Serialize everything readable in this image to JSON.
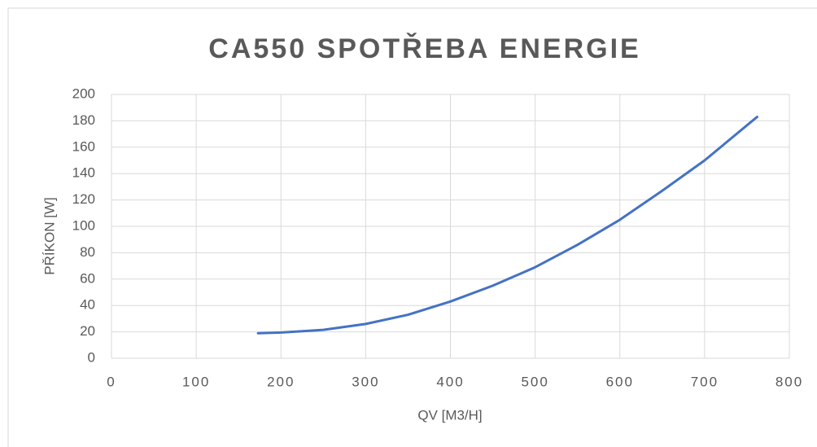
{
  "chart_data": {
    "type": "line",
    "title": "CA550 SPOTŘEBA ENERGIE",
    "xlabel": "QV [M3/H]",
    "ylabel": "PŘÍKON [W]",
    "x": [
      173,
      200,
      250,
      300,
      350,
      400,
      450,
      500,
      550,
      600,
      650,
      700,
      762
    ],
    "series": [
      {
        "name": "CA550",
        "color": "#4472c4",
        "values": [
          19,
          19.5,
          21.5,
          26,
          33,
          43,
          55,
          69,
          86,
          105,
          127,
          150,
          183
        ]
      }
    ],
    "xlim": [
      0,
      800
    ],
    "xticks": [
      0,
      100,
      200,
      300,
      400,
      500,
      600,
      700,
      800
    ],
    "ylim": [
      0,
      200
    ],
    "yticks": [
      0,
      20,
      40,
      60,
      80,
      100,
      120,
      140,
      160,
      180,
      200
    ],
    "grid": true
  }
}
